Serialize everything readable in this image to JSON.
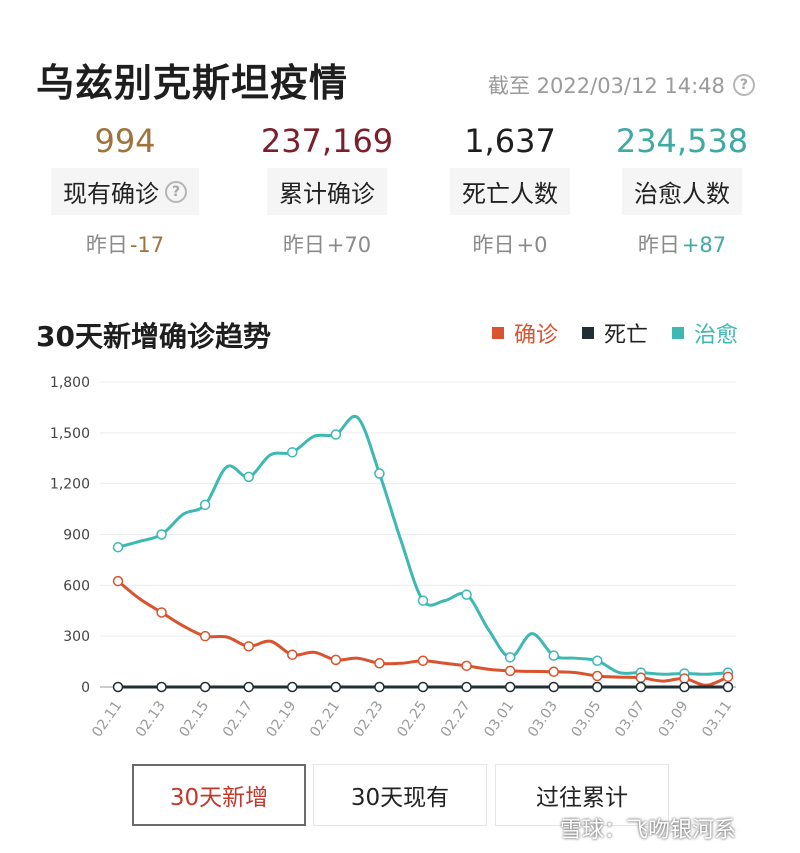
{
  "header": {
    "title": "乌兹别克斯坦疫情",
    "as_of": "截至 2022/03/12 14:48",
    "help_icon": "question-circle-icon"
  },
  "stats": [
    {
      "key": "current",
      "value": "994",
      "label": "现有确诊",
      "yesterday_prefix": "昨日",
      "delta": "-17",
      "color": "#a0733c",
      "delta_color": "#a0733c",
      "has_help": true
    },
    {
      "key": "total",
      "value": "237,169",
      "label": "累计确诊",
      "yesterday_prefix": "昨日",
      "delta": "+70",
      "color": "#7a1f2b",
      "delta_color": "#8a8a8a",
      "has_help": false
    },
    {
      "key": "deaths",
      "value": "1,637",
      "label": "死亡人数",
      "yesterday_prefix": "昨日",
      "delta": "+0",
      "color": "#1e1e1e",
      "delta_color": "#8a8a8a",
      "has_help": false
    },
    {
      "key": "recovered",
      "value": "234,538",
      "label": "治愈人数",
      "yesterday_prefix": "昨日",
      "delta": "+87",
      "color": "#3fa9a3",
      "delta_color": "#3fa9a3",
      "has_help": false
    }
  ],
  "chart_section": {
    "title": "30天新增确诊趋势",
    "legend": [
      {
        "name": "确诊",
        "color": "#d9532f"
      },
      {
        "name": "死亡",
        "color": "#1f2f33"
      },
      {
        "name": "治愈",
        "color": "#3db8b2"
      }
    ]
  },
  "chart_data": {
    "type": "line",
    "title": "30天新增确诊趋势",
    "ylim": [
      0,
      1800
    ],
    "yticks": [
      "0",
      "300",
      "600",
      "900",
      "1,200",
      "1,500",
      "1,800"
    ],
    "x": [
      "02.11",
      "02.12",
      "02.13",
      "02.14",
      "02.15",
      "02.16",
      "02.17",
      "02.18",
      "02.19",
      "02.20",
      "02.21",
      "02.22",
      "02.23",
      "02.24",
      "02.25",
      "02.26",
      "02.27",
      "02.28",
      "03.01",
      "03.02",
      "03.03",
      "03.04",
      "03.05",
      "03.06",
      "03.07",
      "03.08",
      "03.09",
      "03.10",
      "03.11"
    ],
    "xtick_labels": [
      "02.11",
      "02.13",
      "02.15",
      "02.17",
      "02.19",
      "02.21",
      "02.23",
      "02.25",
      "02.27",
      "03.01",
      "03.03",
      "03.05",
      "03.07",
      "03.09",
      "03.11"
    ],
    "grid": true,
    "legend_position": "top-right",
    "series": [
      {
        "name": "确诊",
        "color": "#d9532f",
        "values": [
          625,
          520,
          440,
          360,
          300,
          295,
          240,
          270,
          190,
          205,
          160,
          170,
          140,
          140,
          155,
          140,
          125,
          105,
          95,
          92,
          90,
          85,
          65,
          58,
          55,
          35,
          50,
          10,
          60
        ]
      },
      {
        "name": "死亡",
        "color": "#1f2f33",
        "values": [
          0,
          0,
          0,
          0,
          0,
          0,
          0,
          0,
          0,
          0,
          0,
          0,
          0,
          0,
          0,
          0,
          0,
          0,
          0,
          0,
          0,
          0,
          0,
          0,
          0,
          0,
          0,
          0,
          0
        ]
      },
      {
        "name": "治愈",
        "color": "#3db8b2",
        "values": [
          825,
          860,
          900,
          1020,
          1075,
          1300,
          1240,
          1370,
          1385,
          1480,
          1490,
          1590,
          1260,
          860,
          510,
          510,
          545,
          340,
          175,
          315,
          185,
          170,
          155,
          85,
          85,
          75,
          80,
          75,
          85
        ]
      }
    ]
  },
  "tabs": [
    {
      "label": "30天新增",
      "active": true
    },
    {
      "label": "30天现有",
      "active": false
    },
    {
      "label": "过往累计",
      "active": false
    }
  ],
  "watermark": "雪球：飞吻银河系"
}
